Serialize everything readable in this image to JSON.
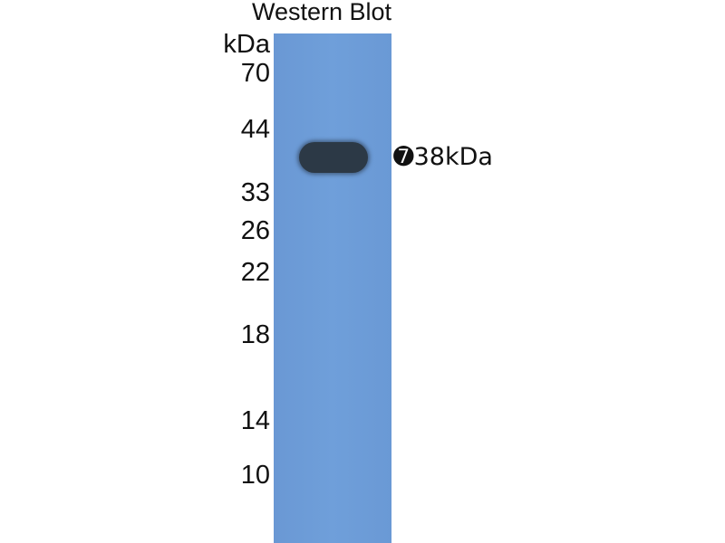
{
  "title": "Western Blot",
  "unit_label": "kDa",
  "markers": [
    "70",
    "44",
    "33",
    "26",
    "22",
    "18",
    "14",
    "10"
  ],
  "band_annotation": "➐38kDa",
  "colors": {
    "lane": "#6b9bd6",
    "band": "#2c3946"
  }
}
